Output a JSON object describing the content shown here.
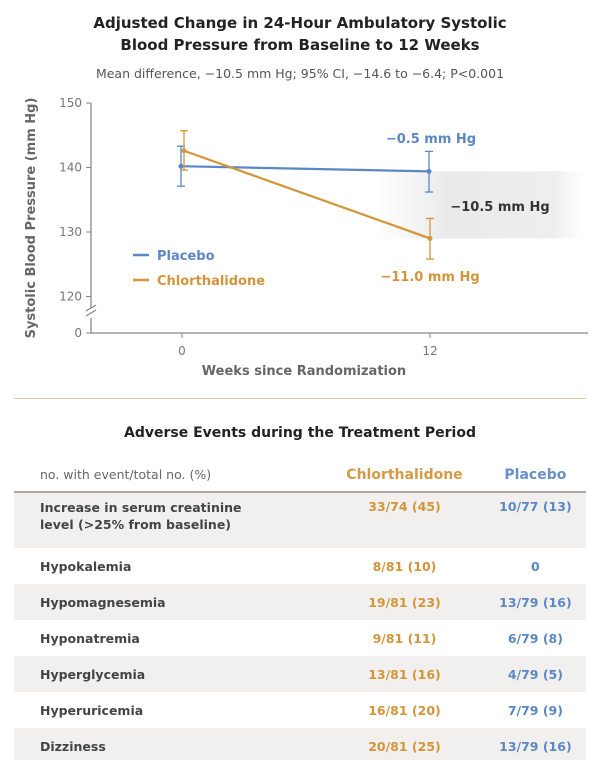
{
  "chart_data": {
    "type": "line",
    "title": "Adjusted Change in 24-Hour Ambulatory Systolic Blood Pressure from Baseline to 12 Weeks",
    "title_line1": "Adjusted Change in 24-Hour Ambulatory Systolic",
    "title_line2": "Blood Pressure from Baseline to 12 Weeks",
    "subtitle": "Mean difference, −10.5 mm Hg; 95% CI, −14.6 to −6.4; P<0.001",
    "xlabel": "Weeks since Randomization",
    "ylabel": "Systolic Blood Pressure (mm Hg)",
    "x": [
      0,
      12
    ],
    "x_ticks": [
      "0",
      "12"
    ],
    "y_ticks": [
      "0",
      "120",
      "130",
      "140",
      "150"
    ],
    "ylim": [
      120,
      150
    ],
    "y_axis_break": true,
    "grid": false,
    "legend_position": "left",
    "series": [
      {
        "name": "Placebo",
        "color": "#5b87c5",
        "values": [
          140.2,
          139.4
        ],
        "ci_low": [
          137.1,
          136.2
        ],
        "ci_high": [
          143.3,
          142.5
        ],
        "change_label": "−0.5 mm Hg"
      },
      {
        "name": "Chlorthalidone",
        "color": "#d4953a",
        "values": [
          142.6,
          129.0
        ],
        "ci_low": [
          139.6,
          125.8
        ],
        "ci_high": [
          145.7,
          132.1
        ],
        "change_label": "−11.0 mm Hg"
      }
    ],
    "difference_label": "−10.5 mm Hg"
  },
  "table": {
    "title": "Adverse Events during the Treatment Period",
    "header": [
      "no. with event/total no. (%)",
      "Chlorthalidone",
      "Placebo"
    ],
    "rows": [
      {
        "event": "Increase in serum creatinine level (>25% from baseline)",
        "event_line1": "Increase in serum creatinine",
        "event_line2": "level (>25% from baseline)",
        "chlorthalidone": "33/74 (45)",
        "placebo": "10/77 (13)"
      },
      {
        "event": "Hypokalemia",
        "chlorthalidone": "8/81 (10)",
        "placebo": "0"
      },
      {
        "event": "Hypomagnesemia",
        "chlorthalidone": "19/81 (23)",
        "placebo": "13/79 (16)"
      },
      {
        "event": "Hyponatremia",
        "chlorthalidone": "9/81 (11)",
        "placebo": "6/79 (8)"
      },
      {
        "event": "Hyperglycemia",
        "chlorthalidone": "13/81 (16)",
        "placebo": "4/79 (5)"
      },
      {
        "event": "Hyperuricemia",
        "chlorthalidone": "16/81 (20)",
        "placebo": "7/79 (9)"
      },
      {
        "event": "Dizziness",
        "chlorthalidone": "20/81 (25)",
        "placebo": "13/79 (16)"
      }
    ]
  }
}
